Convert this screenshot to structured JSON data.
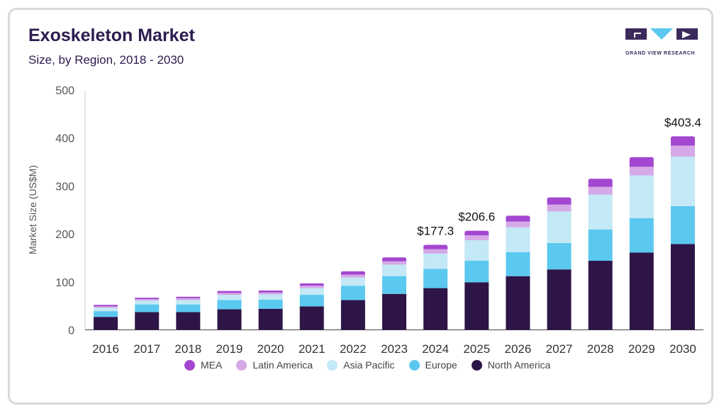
{
  "header": {
    "title": "Exoskeleton Market",
    "subtitle": "Size, by Region, 2018 - 2030",
    "logo_text": "GRAND VIEW RESEARCH"
  },
  "colors": {
    "mea": "#a347d1",
    "latin_america": "#d5a9e8",
    "asia_pacific": "#c3e8f6",
    "europe": "#5bc8ef",
    "north_america": "#2d1547",
    "brand": "#3b2a5c",
    "brand_accent": "#5bc8ef"
  },
  "chart_data": {
    "type": "bar",
    "stacked": true,
    "title": "Exoskeleton Market",
    "subtitle": "Size, by Region, 2018 - 2030",
    "xlabel": "",
    "ylabel": "Market Size (US$M)",
    "ylim": [
      0,
      500
    ],
    "yticks": [
      0,
      100,
      200,
      300,
      400,
      500
    ],
    "grid": false,
    "legend_position": "bottom",
    "categories": [
      "2016",
      "2017",
      "2018",
      "2019",
      "2020",
      "2021",
      "2022",
      "2023",
      "2024",
      "2025",
      "2026",
      "2027",
      "2028",
      "2029",
      "2030"
    ],
    "series": [
      {
        "name": "North America",
        "color": "#2d1547",
        "values": [
          27,
          37,
          37,
          43,
          44,
          49,
          62,
          75,
          87,
          99,
          112,
          126,
          144,
          161,
          179
        ]
      },
      {
        "name": "Europe",
        "color": "#5bc8ef",
        "values": [
          12,
          16,
          16,
          19,
          19,
          24,
          30,
          37,
          40,
          45,
          50,
          55,
          65,
          72,
          79
        ]
      },
      {
        "name": "Asia Pacific",
        "color": "#c3e8f6",
        "values": [
          7,
          8,
          9,
          11,
          11,
          14,
          17,
          24,
          32,
          43,
          52,
          66,
          73,
          89,
          103
        ]
      },
      {
        "name": "Latin America",
        "color": "#d5a9e8",
        "values": [
          3,
          3,
          4,
          4,
          4,
          5,
          6,
          7,
          9,
          10,
          12,
          14,
          16,
          18,
          23
        ]
      },
      {
        "name": "MEA",
        "color": "#a347d1",
        "values": [
          3,
          3,
          3,
          4,
          4,
          5,
          7,
          8,
          9.3,
          9.6,
          12,
          15,
          17,
          20,
          19.4
        ]
      }
    ],
    "data_labels": [
      {
        "category": "2024",
        "text": "$177.3"
      },
      {
        "category": "2025",
        "text": "$206.6"
      },
      {
        "category": "2030",
        "text": "$403.4"
      }
    ]
  },
  "legend": {
    "items": [
      {
        "label": "MEA",
        "key": "mea"
      },
      {
        "label": "Latin America",
        "key": "latin_america"
      },
      {
        "label": "Asia Pacific",
        "key": "asia_pacific"
      },
      {
        "label": "Europe",
        "key": "europe"
      },
      {
        "label": "North America",
        "key": "north_america"
      }
    ]
  }
}
